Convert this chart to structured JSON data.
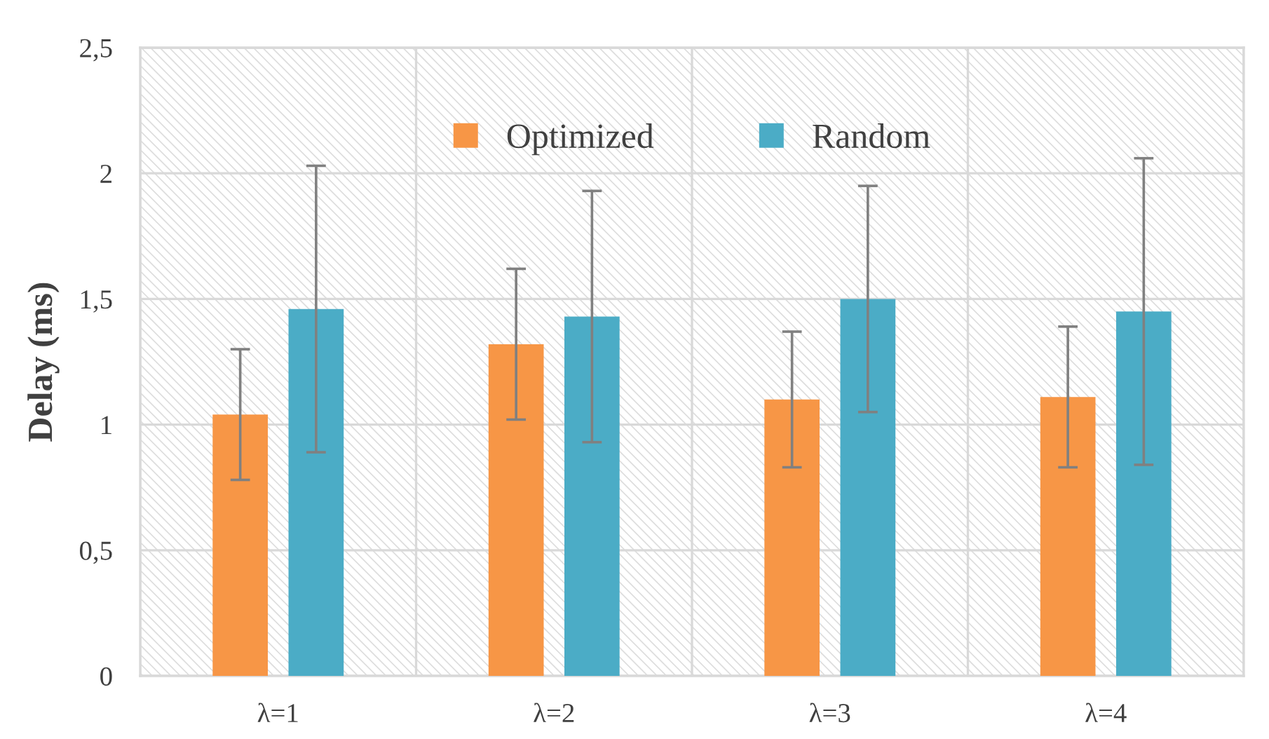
{
  "chart_data": {
    "type": "bar",
    "ylabel": "Delay (ms)",
    "categories": [
      "λ=1",
      "λ=2",
      "λ=3",
      "λ=4"
    ],
    "series": [
      {
        "name": "Optimized",
        "color": "#f79646",
        "values": [
          1.04,
          1.32,
          1.1,
          1.11
        ],
        "errors": [
          0.26,
          0.3,
          0.27,
          0.28
        ]
      },
      {
        "name": "Random",
        "color": "#4bacc6",
        "values": [
          1.46,
          1.43,
          1.5,
          1.45
        ],
        "errors": [
          0.57,
          0.5,
          0.45,
          0.61
        ]
      }
    ],
    "ylim": [
      0,
      2.5
    ],
    "yticks": [
      0,
      {
        "value": 0.5,
        "label": "0,5"
      },
      1,
      {
        "value": 1.5,
        "label": "1,5"
      },
      2,
      {
        "value": 2.5,
        "label": "2,5"
      }
    ],
    "grid": true,
    "legend": "top"
  }
}
